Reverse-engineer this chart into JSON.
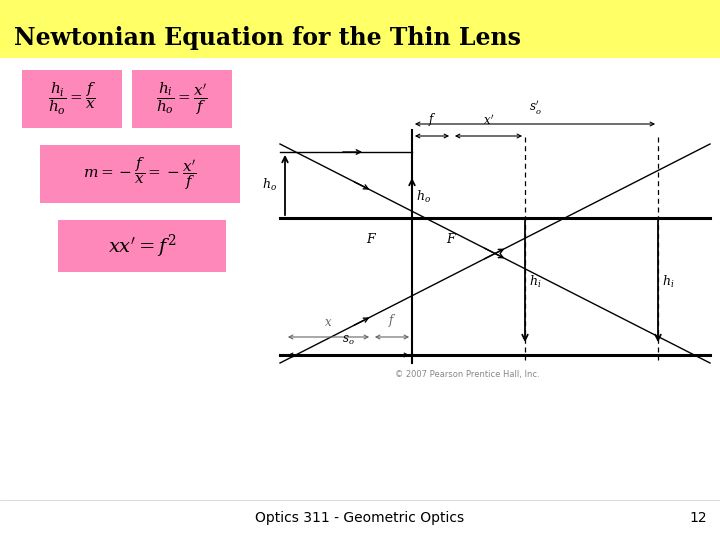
{
  "title": "Newtonian Equation for the Thin Lens",
  "title_bg": "#ffff66",
  "slide_bg": "#ffffff",
  "pink_bg": "#ff88bb",
  "footer_text": "Optics 311 - Geometric Optics",
  "footer_page": "12",
  "copyright": "© 2007 Pearson Prentice Hall, Inc.",
  "eq1a": "$\\dfrac{h_i}{h_o} = \\dfrac{f}{x}$",
  "eq1b": "$\\dfrac{h_i}{h_o} = \\dfrac{x'}{f}$",
  "eq2": "$m = -\\dfrac{f}{x} = -\\dfrac{x'}{f}$",
  "eq3": "$xx' = f^{2}$"
}
